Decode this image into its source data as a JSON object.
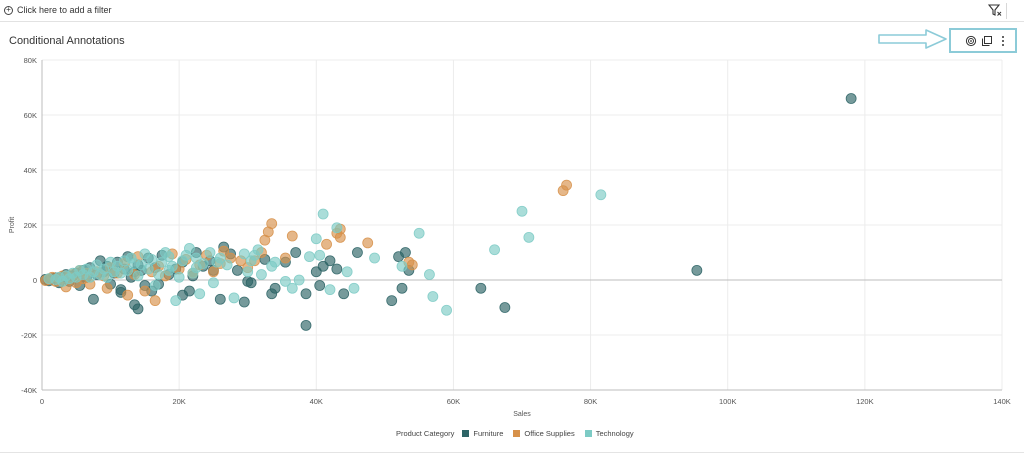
{
  "filter_bar": {
    "add_filter_label": "Click here to add a filter",
    "filter_icon": "filter-icon"
  },
  "header": {
    "title": "Conditional Annotations",
    "tools": [
      {
        "icon": "target-icon"
      },
      {
        "icon": "copy-icon"
      },
      {
        "icon": "more-vertical-icon"
      }
    ],
    "annotation_arrow_icon": "arrow-right-icon"
  },
  "colors": {
    "furniture": "#2d6466",
    "office_supplies": "#d7914a",
    "technology": "#7dcbc5"
  },
  "chart_data": {
    "type": "scatter",
    "title": "Conditional Annotations",
    "xlabel": "Sales",
    "ylabel": "Profit",
    "xlim": [
      0,
      140000
    ],
    "ylim": [
      -40000,
      80000
    ],
    "x_ticks": [
      0,
      20000,
      40000,
      60000,
      80000,
      100000,
      120000,
      140000
    ],
    "x_tick_labels": [
      "0",
      "20K",
      "40K",
      "60K",
      "80K",
      "100K",
      "120K",
      "140K"
    ],
    "y_ticks": [
      -40000,
      -20000,
      0,
      20000,
      40000,
      60000,
      80000
    ],
    "y_tick_labels": [
      "-40K",
      "-20K",
      "0",
      "20K",
      "40K",
      "60K",
      "80K"
    ],
    "grid": true,
    "legend_title": "Product Category",
    "legend_position": "bottom",
    "series": [
      {
        "name": "Furniture",
        "color": "#2d6466",
        "points": [
          [
            118000,
            66000
          ],
          [
            95500,
            3500
          ],
          [
            67500,
            -10000
          ],
          [
            64000,
            -3000
          ],
          [
            53500,
            3500
          ],
          [
            53000,
            10000
          ],
          [
            52000,
            8500
          ],
          [
            52500,
            -3000
          ],
          [
            51000,
            -7500
          ],
          [
            46000,
            10000
          ],
          [
            44000,
            -5000
          ],
          [
            43000,
            4000
          ],
          [
            42000,
            7000
          ],
          [
            41000,
            5000
          ],
          [
            40000,
            3000
          ],
          [
            40500,
            -2000
          ],
          [
            38500,
            -16500
          ],
          [
            38500,
            -5000
          ],
          [
            37000,
            10000
          ],
          [
            35500,
            6500
          ],
          [
            34000,
            -3000
          ],
          [
            33500,
            -5000
          ],
          [
            32500,
            7500
          ],
          [
            30500,
            -1000
          ],
          [
            29500,
            -8000
          ],
          [
            30000,
            -500
          ],
          [
            28500,
            3500
          ],
          [
            27500,
            9500
          ],
          [
            26500,
            12000
          ],
          [
            26000,
            -7000
          ],
          [
            25000,
            3500
          ],
          [
            24500,
            7000
          ],
          [
            23500,
            5000
          ],
          [
            22500,
            10000
          ],
          [
            22000,
            1500
          ],
          [
            21500,
            -4000
          ],
          [
            20500,
            6500
          ],
          [
            19500,
            4000
          ],
          [
            18500,
            2000
          ],
          [
            17500,
            9000
          ],
          [
            17000,
            -1500
          ],
          [
            16500,
            4500
          ],
          [
            15500,
            8000
          ],
          [
            15000,
            -2000
          ],
          [
            14500,
            3500
          ],
          [
            14000,
            5500
          ],
          [
            13500,
            -9000
          ],
          [
            13000,
            1000
          ],
          [
            12500,
            8500
          ],
          [
            12000,
            4000
          ],
          [
            11500,
            -3500
          ],
          [
            11000,
            6500
          ],
          [
            10500,
            2500
          ],
          [
            10000,
            -1500
          ],
          [
            9500,
            5000
          ],
          [
            9000,
            3000
          ],
          [
            8500,
            7000
          ],
          [
            8000,
            2000
          ],
          [
            7500,
            -7000
          ],
          [
            7000,
            4500
          ],
          [
            6500,
            1000
          ],
          [
            6000,
            3500
          ],
          [
            5500,
            -2000
          ],
          [
            5000,
            2500
          ],
          [
            4500,
            1500
          ],
          [
            4000,
            -500
          ],
          [
            3500,
            2000
          ],
          [
            3000,
            1000
          ],
          [
            2500,
            -1000
          ],
          [
            2000,
            800
          ],
          [
            1500,
            500
          ],
          [
            1000,
            -300
          ],
          [
            500,
            200
          ],
          [
            14000,
            -10500
          ],
          [
            20500,
            -5500
          ],
          [
            16000,
            -4000
          ],
          [
            11500,
            -4500
          ],
          [
            13500,
            3000
          ]
        ]
      },
      {
        "name": "Office Supplies",
        "color": "#d7914a",
        "points": [
          [
            76500,
            34500
          ],
          [
            76000,
            32500
          ],
          [
            54000,
            5500
          ],
          [
            53500,
            6500
          ],
          [
            47500,
            13500
          ],
          [
            43500,
            18500
          ],
          [
            43000,
            17000
          ],
          [
            43500,
            15500
          ],
          [
            41500,
            13000
          ],
          [
            36500,
            16000
          ],
          [
            35500,
            8000
          ],
          [
            33500,
            20500
          ],
          [
            33000,
            17500
          ],
          [
            32500,
            14500
          ],
          [
            32000,
            10000
          ],
          [
            31000,
            7000
          ],
          [
            30000,
            4500
          ],
          [
            27500,
            8000
          ],
          [
            26000,
            6000
          ],
          [
            25000,
            3000
          ],
          [
            24000,
            9000
          ],
          [
            23000,
            5500
          ],
          [
            22000,
            2500
          ],
          [
            21000,
            7500
          ],
          [
            20000,
            4000
          ],
          [
            19000,
            9500
          ],
          [
            18000,
            1500
          ],
          [
            17000,
            5000
          ],
          [
            16000,
            3000
          ],
          [
            15000,
            -4000
          ],
          [
            14000,
            8500
          ],
          [
            13500,
            2000
          ],
          [
            12500,
            -5500
          ],
          [
            12000,
            6000
          ],
          [
            11000,
            2500
          ],
          [
            10000,
            4500
          ],
          [
            9500,
            -3000
          ],
          [
            9000,
            1500
          ],
          [
            8000,
            3000
          ],
          [
            7000,
            -1500
          ],
          [
            6500,
            2500
          ],
          [
            6000,
            500
          ],
          [
            5500,
            3500
          ],
          [
            5000,
            -1000
          ],
          [
            4500,
            2000
          ],
          [
            4000,
            1000
          ],
          [
            3500,
            -2500
          ],
          [
            3000,
            1500
          ],
          [
            2500,
            500
          ],
          [
            2000,
            -500
          ],
          [
            1500,
            1000
          ],
          [
            1000,
            300
          ],
          [
            500,
            -200
          ],
          [
            29000,
            7000
          ],
          [
            26500,
            10500
          ],
          [
            16500,
            -7500
          ]
        ]
      },
      {
        "name": "Technology",
        "color": "#7dcbc5",
        "points": [
          [
            81500,
            31000
          ],
          [
            71000,
            15500
          ],
          [
            70000,
            25000
          ],
          [
            66000,
            11000
          ],
          [
            59000,
            -11000
          ],
          [
            57000,
            -6000
          ],
          [
            56500,
            2000
          ],
          [
            55000,
            17000
          ],
          [
            52500,
            5000
          ],
          [
            48500,
            8000
          ],
          [
            45500,
            -3000
          ],
          [
            44500,
            3000
          ],
          [
            43000,
            19000
          ],
          [
            42000,
            -3500
          ],
          [
            41000,
            24000
          ],
          [
            40500,
            9000
          ],
          [
            40000,
            15000
          ],
          [
            39000,
            8500
          ],
          [
            37500,
            0
          ],
          [
            36500,
            -3000
          ],
          [
            35500,
            -500
          ],
          [
            34000,
            6500
          ],
          [
            33500,
            5000
          ],
          [
            32000,
            2000
          ],
          [
            31500,
            11000
          ],
          [
            31000,
            9000
          ],
          [
            30500,
            7000
          ],
          [
            30000,
            3000
          ],
          [
            29500,
            9500
          ],
          [
            28000,
            -6500
          ],
          [
            27000,
            5500
          ],
          [
            26000,
            8000
          ],
          [
            25000,
            -1000
          ],
          [
            24500,
            10000
          ],
          [
            23500,
            6000
          ],
          [
            23000,
            -5000
          ],
          [
            22500,
            4500
          ],
          [
            22000,
            2500
          ],
          [
            21500,
            11500
          ],
          [
            21000,
            9000
          ],
          [
            20500,
            7000
          ],
          [
            20000,
            1000
          ],
          [
            19500,
            -7500
          ],
          [
            19000,
            5000
          ],
          [
            18500,
            3500
          ],
          [
            18000,
            10000
          ],
          [
            17500,
            6500
          ],
          [
            17000,
            2000
          ],
          [
            16500,
            -2000
          ],
          [
            16000,
            7500
          ],
          [
            15500,
            4000
          ],
          [
            15000,
            9500
          ],
          [
            14500,
            5500
          ],
          [
            14000,
            1500
          ],
          [
            13500,
            6000
          ],
          [
            13000,
            8000
          ],
          [
            12500,
            3500
          ],
          [
            12000,
            7000
          ],
          [
            11500,
            2500
          ],
          [
            11000,
            5000
          ],
          [
            10500,
            3000
          ],
          [
            10000,
            6500
          ],
          [
            9500,
            1000
          ],
          [
            9000,
            4000
          ],
          [
            8500,
            2000
          ],
          [
            8000,
            5500
          ],
          [
            7500,
            3000
          ],
          [
            7000,
            1000
          ],
          [
            6500,
            4000
          ],
          [
            6000,
            2000
          ],
          [
            5500,
            3500
          ],
          [
            5000,
            1000
          ],
          [
            4500,
            2500
          ],
          [
            4000,
            500
          ],
          [
            3500,
            1500
          ],
          [
            3000,
            -500
          ],
          [
            2500,
            1000
          ],
          [
            2000,
            200
          ],
          [
            1000,
            500
          ],
          [
            18500,
            8500
          ],
          [
            22500,
            8000
          ],
          [
            25500,
            6500
          ]
        ]
      }
    ]
  }
}
